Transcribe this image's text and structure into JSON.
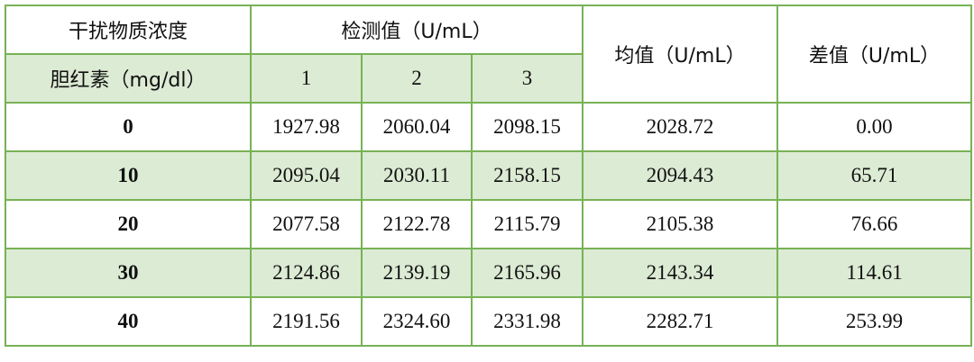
{
  "header": {
    "interferent_label": "干扰物质浓度",
    "measured_label": "检测值（U/mL）",
    "mean_label": "均值（U/mL）",
    "diff_label": "差值（U/mL）",
    "substance_label": "胆红素（mg/dl）",
    "replicates": [
      "1",
      "2",
      "3"
    ]
  },
  "colors": {
    "border": "#77b255",
    "stripe": "#dcebd4"
  },
  "rows": [
    {
      "conc": "0",
      "v": [
        "1927.98",
        "2060.04",
        "2098.15"
      ],
      "mean": "2028.72",
      "diff": "0.00"
    },
    {
      "conc": "10",
      "v": [
        "2095.04",
        "2030.11",
        "2158.15"
      ],
      "mean": "2094.43",
      "diff": "65.71"
    },
    {
      "conc": "20",
      "v": [
        "2077.58",
        "2122.78",
        "2115.79"
      ],
      "mean": "2105.38",
      "diff": "76.66"
    },
    {
      "conc": "30",
      "v": [
        "2124.86",
        "2139.19",
        "2165.96"
      ],
      "mean": "2143.34",
      "diff": "114.61"
    },
    {
      "conc": "40",
      "v": [
        "2191.56",
        "2324.60",
        "2331.98"
      ],
      "mean": "2282.71",
      "diff": "253.99"
    }
  ]
}
